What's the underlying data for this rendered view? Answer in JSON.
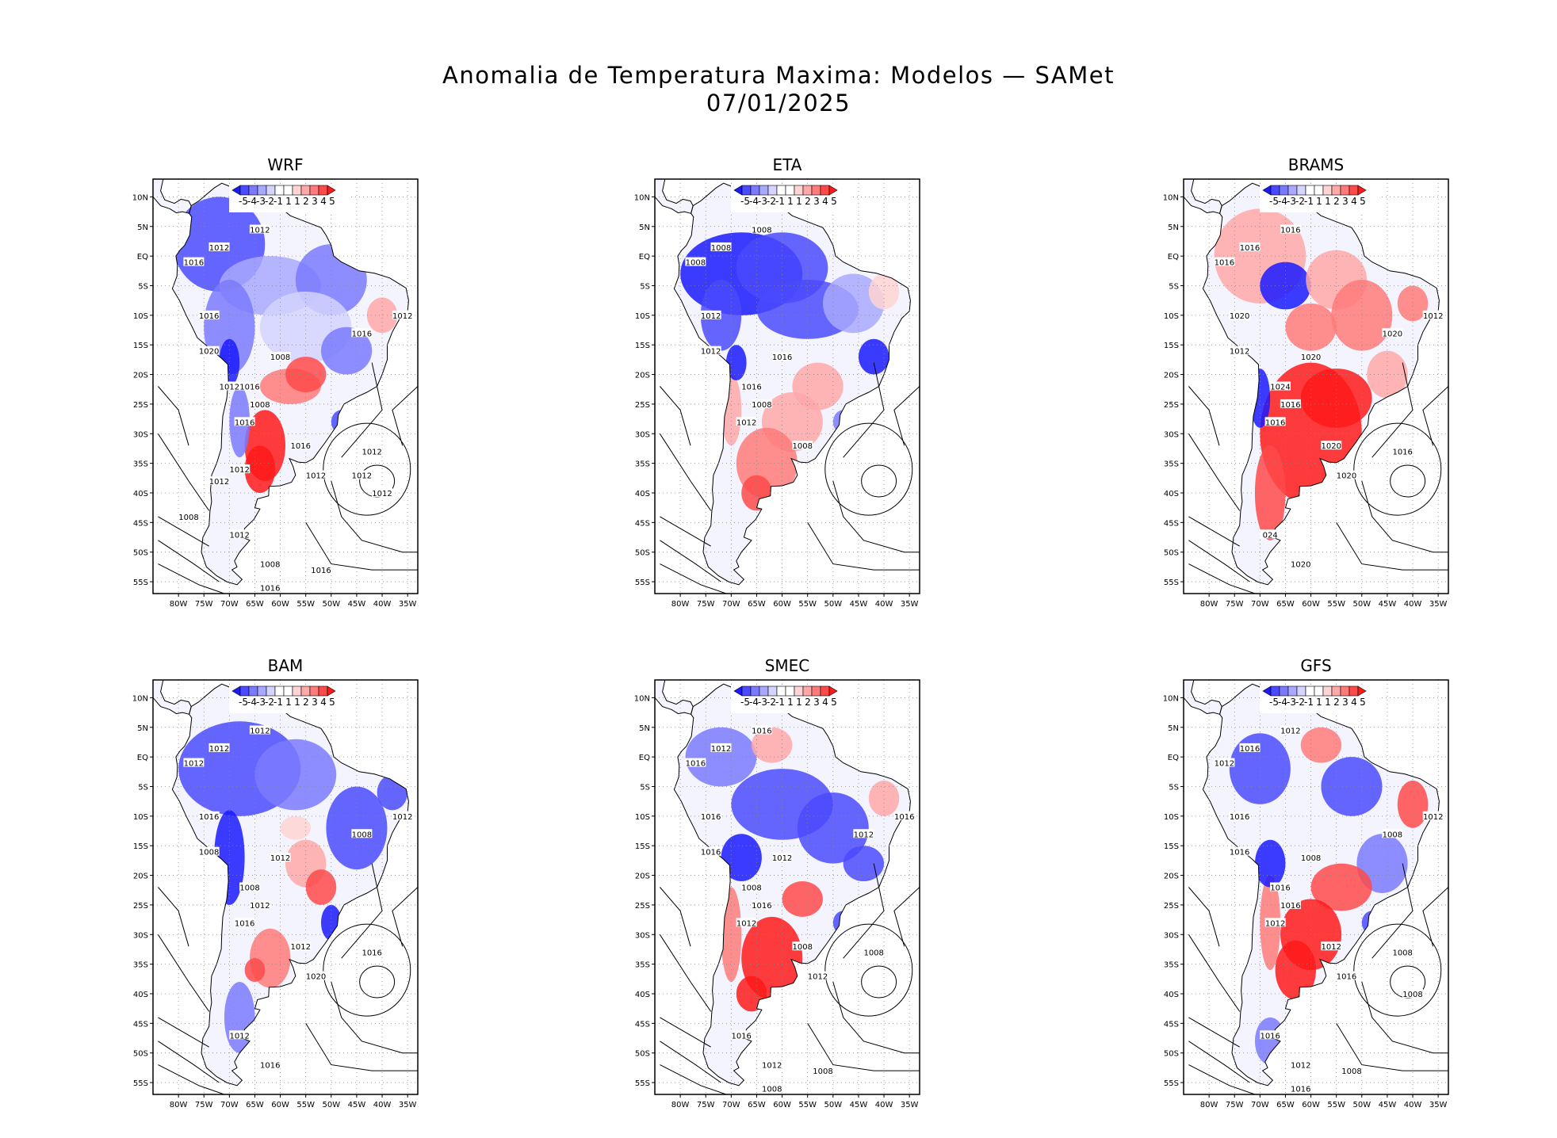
{
  "title": {
    "line1": "Anomalia de Temperatura Maxima: Modelos — SAMet",
    "line2": "07/01/2025"
  },
  "colors": {
    "anom": [
      "#1a1aff",
      "#4a4aff",
      "#7a7aff",
      "#a8a8ff",
      "#d4d4ff",
      "#ffffff",
      "#ffffff",
      "#ffd4d4",
      "#ffa8a8",
      "#ff7a7a",
      "#ff4a4a",
      "#ff1a1a"
    ],
    "land_base": "#f4f4ff",
    "contour": "#000000"
  },
  "axes": {
    "lat_labels": [
      "10N",
      "5N",
      "EQ",
      "5S",
      "10S",
      "15S",
      "20S",
      "25S",
      "30S",
      "35S",
      "40S",
      "45S",
      "50S",
      "55S"
    ],
    "lon_labels": [
      "80W",
      "75W",
      "70W",
      "65W",
      "60W",
      "55W",
      "50W",
      "45W",
      "40W",
      "35W"
    ]
  },
  "colorbar": {
    "labels": [
      "-5",
      "-4",
      "-3",
      "-2",
      "-1",
      "1",
      "1",
      "2",
      "3",
      "4",
      "5"
    ]
  },
  "panels": [
    {
      "name": "WRF",
      "contour_labels": [
        "1012",
        "1012",
        "1012",
        "1016",
        "1016",
        "1020",
        "1008",
        "1016",
        "1008",
        "1016",
        "1016",
        "1012",
        "1012",
        "1012",
        "1016",
        "1012",
        "1008",
        "1016",
        "1016",
        "1012",
        "1012",
        "1012",
        "1008",
        "1012",
        "1012"
      ]
    },
    {
      "name": "ETA",
      "contour_labels": [
        "1008",
        "1008",
        "1008",
        "1008",
        "1012",
        "1012",
        "1016",
        "1016",
        "1008",
        "1012",
        "1008"
      ]
    },
    {
      "name": "BRAMS",
      "contour_labels": [
        "1016",
        "1016",
        "1016",
        "1016",
        "1020",
        "1012",
        "1020",
        "1024",
        "1016",
        "1016",
        "1020",
        "1020",
        "1016",
        "1012",
        "1020",
        "024",
        "1020"
      ]
    },
    {
      "name": "BAM",
      "contour_labels": [
        "1012",
        "1012",
        "1012",
        "1012",
        "1016",
        "1008",
        "1012",
        "1008",
        "1012",
        "1016",
        "1012",
        "1020",
        "1016",
        "1012",
        "1008",
        "1012",
        "1016"
      ]
    },
    {
      "name": "SMEC",
      "contour_labels": [
        "1012",
        "1016",
        "1012",
        "1016",
        "1016",
        "1016",
        "1012",
        "1008",
        "1016",
        "1012",
        "1008",
        "1012",
        "1008",
        "1016",
        "1012",
        "1016",
        "1012",
        "1008",
        "1008"
      ]
    },
    {
      "name": "GFS",
      "contour_labels": [
        "1012",
        "1012",
        "1016",
        "1012",
        "1016",
        "1016",
        "1008",
        "1016",
        "1016",
        "1012",
        "1012",
        "1016",
        "1008",
        "1012",
        "1008",
        "1016",
        "1012",
        "1008",
        "1016",
        "1008"
      ]
    }
  ]
}
